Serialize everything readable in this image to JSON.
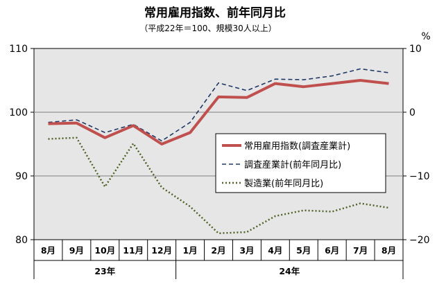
{
  "chart_data": {
    "type": "line",
    "title": "常用雇用指数、前年同月比",
    "subtitle": "（平成22年＝100、規模30人以上）",
    "right_unit": "%",
    "categories": [
      "8月",
      "9月",
      "10月",
      "11月",
      "12月",
      "1月",
      "2月",
      "3月",
      "4月",
      "5月",
      "6月",
      "7月",
      "8月"
    ],
    "year_groups": [
      {
        "label": "23年",
        "span": [
          0,
          4
        ]
      },
      {
        "label": "24年",
        "span": [
          5,
          12
        ]
      }
    ],
    "left_axis": {
      "ticks": [
        "80",
        "90",
        "100",
        "110"
      ],
      "range": [
        80,
        110
      ]
    },
    "right_axis": {
      "ticks": [
        "−20",
        "−10",
        "0",
        "10"
      ],
      "range": [
        -20,
        10
      ]
    },
    "grid": true,
    "legend_position": "right-middle",
    "series": [
      {
        "name": "常用雇用指数(調査産業計)",
        "axis": "left",
        "color": "#c0504d",
        "style": "solid",
        "values": [
          98.2,
          98.3,
          96.0,
          97.9,
          95.0,
          96.8,
          102.4,
          102.3,
          104.5,
          104.0,
          104.5,
          105.0,
          104.5
        ]
      },
      {
        "name": "調査産業計(前年同月比)",
        "axis": "right",
        "color": "#1f3864",
        "style": "dashed",
        "values": [
          -1.6,
          -1.2,
          -3.2,
          -1.9,
          -4.5,
          -1.6,
          4.6,
          3.4,
          5.2,
          5.1,
          5.7,
          6.8,
          6.2
        ]
      },
      {
        "name": "製造業(前年同月比)",
        "axis": "right",
        "color": "#4f6228",
        "style": "dotted",
        "values": [
          -4.2,
          -4.0,
          -11.7,
          -4.9,
          -11.8,
          -14.8,
          -19.0,
          -18.8,
          -16.3,
          -15.4,
          -15.6,
          -14.3,
          -15.0
        ]
      }
    ]
  }
}
